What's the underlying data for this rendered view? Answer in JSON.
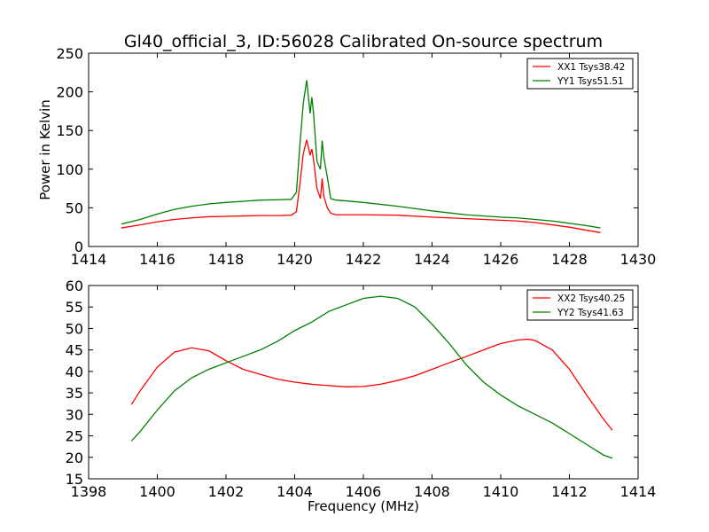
{
  "figure_title": "Gl40_official_3, ID:56028 Calibrated On-source spectrum",
  "chart_data": [
    {
      "type": "line",
      "title": "Gl40_official_3, ID:56028 Calibrated On-source spectrum",
      "xlabel": "",
      "ylabel": "Power in Kelvin",
      "xlim": [
        1414,
        1430
      ],
      "ylim": [
        0,
        250
      ],
      "x_ticks": [
        "1414",
        "1416",
        "1418",
        "1420",
        "1422",
        "1424",
        "1426",
        "1428",
        "1430"
      ],
      "y_ticks": [
        "0",
        "50",
        "100",
        "150",
        "200",
        "250"
      ],
      "grid": false,
      "legend_position": "top-right",
      "series": [
        {
          "name": "XX1 Tsys38.42",
          "color": "#ff0000",
          "x": [
            1414.95,
            1415.5,
            1416.0,
            1416.5,
            1417.0,
            1417.5,
            1418.0,
            1418.5,
            1419.0,
            1419.5,
            1419.9,
            1420.05,
            1420.15,
            1420.25,
            1420.35,
            1420.45,
            1420.5,
            1420.55,
            1420.65,
            1420.75,
            1420.8,
            1420.85,
            1420.95,
            1421.05,
            1421.2,
            1421.5,
            1422.0,
            1423.0,
            1424.0,
            1425.0,
            1426.0,
            1426.5,
            1427.0,
            1427.5,
            1428.0,
            1428.5,
            1428.9
          ],
          "values": [
            24,
            28,
            32,
            35,
            37,
            38.5,
            39,
            39.5,
            40,
            40,
            40.5,
            45,
            80,
            120,
            138,
            118,
            126,
            112,
            75,
            62,
            88,
            65,
            50,
            43,
            41,
            41,
            41,
            40.5,
            38,
            36,
            34,
            33,
            31,
            28,
            25,
            21,
            18
          ]
        },
        {
          "name": "YY1 Tsys51.51",
          "color": "#008000",
          "x": [
            1414.95,
            1415.5,
            1416.0,
            1416.5,
            1417.0,
            1417.5,
            1418.0,
            1418.5,
            1419.0,
            1419.5,
            1419.9,
            1420.05,
            1420.15,
            1420.25,
            1420.35,
            1420.45,
            1420.5,
            1420.55,
            1420.65,
            1420.75,
            1420.8,
            1420.85,
            1420.95,
            1421.05,
            1421.2,
            1421.5,
            1422.0,
            1423.0,
            1424.0,
            1425.0,
            1426.0,
            1426.5,
            1427.0,
            1427.5,
            1428.0,
            1428.5,
            1428.9
          ],
          "values": [
            29,
            35,
            42,
            48,
            52,
            55,
            57,
            58.5,
            60,
            60.5,
            61,
            70,
            130,
            185,
            215,
            172,
            193,
            172,
            110,
            100,
            137,
            115,
            90,
            62,
            60,
            59,
            57,
            52,
            46,
            41,
            38,
            37,
            35,
            33,
            30,
            27,
            24
          ]
        }
      ]
    },
    {
      "type": "line",
      "title": "",
      "xlabel": "Frequency (MHz)",
      "ylabel": "",
      "xlim": [
        1398,
        1414
      ],
      "ylim": [
        15,
        60
      ],
      "x_ticks": [
        "1398",
        "1400",
        "1402",
        "1404",
        "1406",
        "1408",
        "1410",
        "1412",
        "1414"
      ],
      "y_ticks": [
        "15",
        "20",
        "25",
        "30",
        "35",
        "40",
        "45",
        "50",
        "55",
        "60"
      ],
      "grid": false,
      "legend_position": "top-right",
      "series": [
        {
          "name": "XX2 Tsys40.25",
          "color": "#ff0000",
          "x": [
            1399.25,
            1399.5,
            1400.0,
            1400.5,
            1401.0,
            1401.5,
            1402.0,
            1402.5,
            1403.0,
            1403.5,
            1404.0,
            1404.5,
            1405.0,
            1405.5,
            1406.0,
            1406.5,
            1407.0,
            1407.5,
            1408.0,
            1408.5,
            1409.0,
            1409.5,
            1410.0,
            1410.5,
            1410.8,
            1411.0,
            1411.5,
            1412.0,
            1412.5,
            1413.0,
            1413.25
          ],
          "values": [
            32.3,
            35.5,
            41.0,
            44.5,
            45.5,
            44.8,
            42.5,
            40.5,
            39.3,
            38.2,
            37.5,
            37.0,
            36.7,
            36.4,
            36.5,
            37.0,
            37.9,
            39.0,
            40.5,
            42.0,
            43.5,
            45.0,
            46.5,
            47.3,
            47.5,
            47.2,
            45.0,
            40.5,
            34.5,
            28.8,
            26.3
          ]
        },
        {
          "name": "YY2 Tsys41.63",
          "color": "#008000",
          "x": [
            1399.25,
            1399.5,
            1400.0,
            1400.5,
            1401.0,
            1401.5,
            1402.0,
            1402.5,
            1403.0,
            1403.5,
            1404.0,
            1404.5,
            1405.0,
            1405.5,
            1406.0,
            1406.5,
            1407.0,
            1407.5,
            1408.0,
            1408.5,
            1409.0,
            1409.5,
            1410.0,
            1410.5,
            1411.0,
            1411.5,
            1412.0,
            1412.5,
            1413.0,
            1413.25
          ],
          "values": [
            23.8,
            26.0,
            31.0,
            35.5,
            38.5,
            40.5,
            42.0,
            43.5,
            45.0,
            47.0,
            49.5,
            51.5,
            54.0,
            55.5,
            57.0,
            57.5,
            57.0,
            55.0,
            51.0,
            46.5,
            41.5,
            37.5,
            34.5,
            32.0,
            30.0,
            28.0,
            25.5,
            23.0,
            20.5,
            19.8
          ]
        }
      ]
    }
  ]
}
